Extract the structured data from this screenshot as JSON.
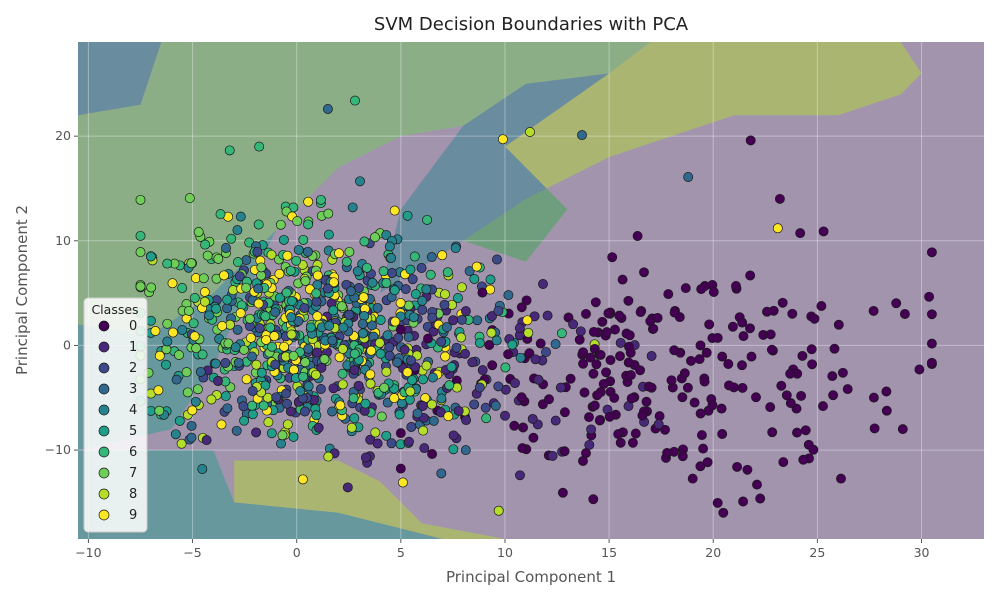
{
  "chart_data": {
    "type": "scatter",
    "title": "SVM Decision Boundaries with PCA",
    "xlabel": "Principal Component 1",
    "ylabel": "Principal Component 2",
    "xlim": [
      -10.5,
      33
    ],
    "ylim": [
      -18.5,
      29
    ],
    "xticks": [
      -10,
      -5,
      0,
      5,
      10,
      15,
      20,
      25,
      30
    ],
    "yticks": [
      -10,
      0,
      10,
      20
    ],
    "xtick_labels": [
      "−10",
      "−5",
      "0",
      "5",
      "10",
      "15",
      "20",
      "25",
      "30"
    ],
    "ytick_labels": [
      "−10",
      "0",
      "10",
      "20"
    ],
    "grid": true,
    "legend": {
      "title": "Classes",
      "position": "middle-left",
      "entries": [
        "0",
        "1",
        "2",
        "3",
        "4",
        "5",
        "6",
        "7",
        "8",
        "9"
      ]
    },
    "class_colors": [
      "#440154",
      "#482878",
      "#3e4989",
      "#31688e",
      "#26828e",
      "#1f9e89",
      "#35b779",
      "#6ece58",
      "#b5de2b",
      "#fde725"
    ],
    "regions": [
      {
        "class": 4,
        "polygon": [
          [
            -10.5,
            29
          ],
          [
            -6.5,
            29
          ],
          [
            -7.5,
            23
          ],
          [
            -10.5,
            22
          ]
        ]
      },
      {
        "class": 7,
        "polygon": [
          [
            -6.5,
            29
          ],
          [
            17,
            29
          ],
          [
            15,
            26
          ],
          [
            11,
            25
          ],
          [
            8,
            21
          ],
          [
            5,
            20
          ],
          [
            2,
            17
          ],
          [
            -1,
            11
          ],
          [
            -4,
            5
          ],
          [
            -7,
            1
          ],
          [
            -10.5,
            2
          ],
          [
            -10.5,
            22
          ],
          [
            -7.5,
            23
          ]
        ]
      },
      {
        "class": 8,
        "polygon": [
          [
            17,
            29
          ],
          [
            29,
            29
          ],
          [
            30,
            26
          ],
          [
            29,
            24
          ],
          [
            26,
            22
          ],
          [
            21,
            22
          ],
          [
            15,
            18
          ],
          [
            11,
            14
          ],
          [
            8,
            10
          ],
          [
            11,
            8
          ],
          [
            13,
            13
          ],
          [
            10,
            19
          ],
          [
            15,
            26
          ]
        ]
      },
      {
        "class": 4,
        "polygon": [
          [
            8,
            21
          ],
          [
            11,
            25
          ],
          [
            15,
            26
          ],
          [
            10,
            19
          ],
          [
            13,
            13
          ],
          [
            11,
            8
          ],
          [
            8,
            10
          ],
          [
            4,
            5
          ],
          [
            5,
            13
          ]
        ]
      },
      {
        "class": 5,
        "polygon": [
          [
            -10.5,
            2
          ],
          [
            -7,
            1
          ],
          [
            -4,
            5
          ],
          [
            -1,
            11
          ],
          [
            -4,
            -2
          ],
          [
            -6,
            -8
          ],
          [
            -10.5,
            -10
          ]
        ]
      },
      {
        "class": 8,
        "polygon": [
          [
            -3,
            -11
          ],
          [
            2,
            -11
          ],
          [
            4,
            -13
          ],
          [
            6,
            -17
          ],
          [
            10,
            -18.5
          ],
          [
            7,
            -18.5
          ],
          [
            2,
            -16
          ],
          [
            -3,
            -15
          ]
        ]
      },
      {
        "class": 5,
        "polygon": [
          [
            -10.5,
            -10
          ],
          [
            -4,
            -10
          ],
          [
            -3,
            -15
          ],
          [
            2,
            -16
          ],
          [
            7,
            -18.5
          ],
          [
            -10.5,
            -18.5
          ]
        ]
      }
    ],
    "clusters": [
      {
        "class": 0,
        "n": 240,
        "center": [
          13.5,
          -3
        ],
        "spread": [
          7.5,
          5.5
        ],
        "x_range": [
          5,
          30.5
        ],
        "y_range": [
          -16,
          15
        ]
      },
      {
        "class": 1,
        "n": 110,
        "center": [
          7,
          -3
        ],
        "spread": [
          4.5,
          4.5
        ],
        "x_range": [
          -6,
          20
        ],
        "y_range": [
          -15,
          14
        ]
      },
      {
        "class": 2,
        "n": 110,
        "center": [
          3,
          0
        ],
        "spread": [
          4,
          5
        ],
        "x_range": [
          -7,
          14
        ],
        "y_range": [
          -14,
          17
        ]
      },
      {
        "class": 3,
        "n": 110,
        "center": [
          2,
          1
        ],
        "spread": [
          4,
          5
        ],
        "x_range": [
          -7,
          14
        ],
        "y_range": [
          -13,
          20
        ]
      },
      {
        "class": 4,
        "n": 110,
        "center": [
          2.5,
          1
        ],
        "spread": [
          4,
          5
        ],
        "x_range": [
          -7,
          14
        ],
        "y_range": [
          -13,
          20
        ]
      },
      {
        "class": 5,
        "n": 110,
        "center": [
          1,
          0
        ],
        "spread": [
          4.5,
          5
        ],
        "x_range": [
          -7,
          16
        ],
        "y_range": [
          -13,
          18
        ]
      },
      {
        "class": 6,
        "n": 120,
        "center": [
          0,
          3
        ],
        "spread": [
          4.5,
          5.5
        ],
        "x_range": [
          -7.5,
          21
        ],
        "y_range": [
          -12,
          19
        ]
      },
      {
        "class": 7,
        "n": 120,
        "center": [
          -2,
          4
        ],
        "spread": [
          4,
          5
        ],
        "x_range": [
          -7.5,
          16
        ],
        "y_range": [
          -13,
          20
        ]
      },
      {
        "class": 8,
        "n": 100,
        "center": [
          2,
          0
        ],
        "spread": [
          4.5,
          5
        ],
        "x_range": [
          -7,
          22
        ],
        "y_range": [
          -16,
          21
        ]
      },
      {
        "class": 9,
        "n": 110,
        "center": [
          0.5,
          2
        ],
        "spread": [
          4,
          5
        ],
        "x_range": [
          -7,
          23
        ],
        "y_range": [
          -13,
          20
        ]
      }
    ],
    "outliers": [
      {
        "class": 0,
        "points": [
          [
            30.5,
            8.9
          ],
          [
            29.9,
            -2.3
          ],
          [
            29.2,
            3
          ],
          [
            29.1,
            -8
          ],
          [
            27.7,
            3.3
          ],
          [
            25.3,
            10.9
          ],
          [
            24.6,
            -10.8
          ],
          [
            21.8,
            19.6
          ],
          [
            23.2,
            14
          ]
        ]
      },
      {
        "class": 3,
        "points": [
          [
            1.5,
            22.6
          ],
          [
            13.7,
            20.1
          ],
          [
            18.8,
            16.1
          ]
        ]
      },
      {
        "class": 6,
        "points": [
          [
            2.8,
            23.4
          ],
          [
            -1.8,
            19
          ]
        ]
      },
      {
        "class": 8,
        "points": [
          [
            9.7,
            -15.8
          ],
          [
            11.2,
            20.4
          ]
        ]
      },
      {
        "class": 9,
        "points": [
          [
            9.9,
            19.7
          ],
          [
            23.1,
            11.2
          ],
          [
            5.1,
            -13.1
          ],
          [
            0.3,
            -12.8
          ]
        ]
      }
    ]
  }
}
